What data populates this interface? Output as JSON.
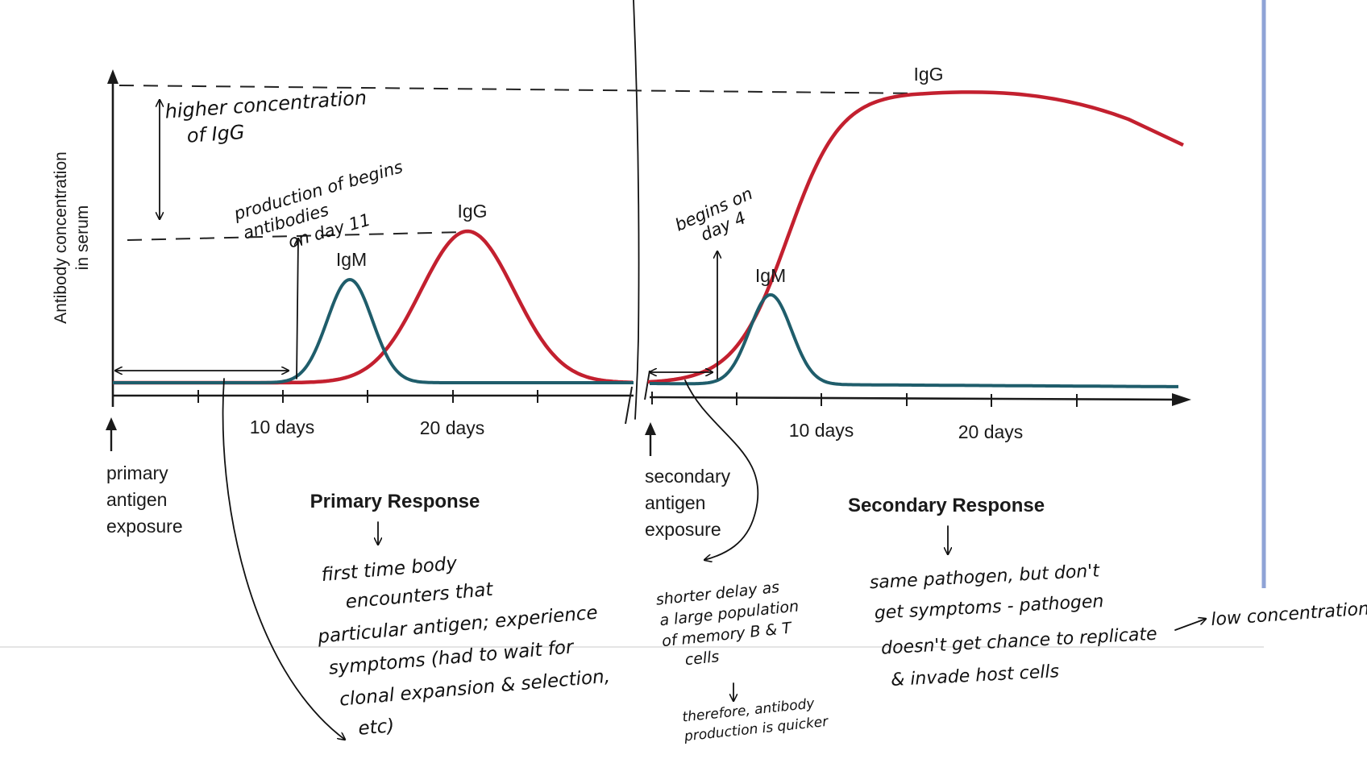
{
  "axis": {
    "ylabel_line1": "Antibody concentration",
    "ylabel_line2": "in serum"
  },
  "primary": {
    "ticks": [
      "10 days",
      "20 days"
    ],
    "exposure": [
      "primary",
      "antigen",
      "exposure"
    ],
    "title": "Primary Response",
    "igm_label": "IgM",
    "igg_label": "IgG"
  },
  "secondary": {
    "ticks": [
      "10 days",
      "20 days"
    ],
    "exposure": [
      "secondary",
      "antigen",
      "exposure"
    ],
    "title": "Secondary Response",
    "igm_label": "IgM",
    "igg_label": "IgG"
  },
  "colors": {
    "igg": "#c3202f",
    "igm": "#1f5d6b"
  },
  "notes": {
    "higher": [
      "higher concentration",
      "of IgG"
    ],
    "production": [
      "production of begins",
      "antibodies",
      "on day 11"
    ],
    "begins": [
      "begins on",
      "day 4"
    ],
    "primary": [
      "first time body",
      "encounters that",
      "particular antigen; experience",
      "symptoms (had to wait for",
      "clonal expansion & selection,",
      "etc)"
    ],
    "shorter": [
      "shorter delay as",
      "a large population",
      "of memory  B & T",
      "cells"
    ],
    "therefore": [
      "therefore, antibody",
      "production is quicker"
    ],
    "secondary": [
      "same pathogen, but don't",
      "get symptoms - pathogen",
      "doesn't get chance to replicate",
      "& invade host cells"
    ],
    "low": "low concentration"
  }
}
